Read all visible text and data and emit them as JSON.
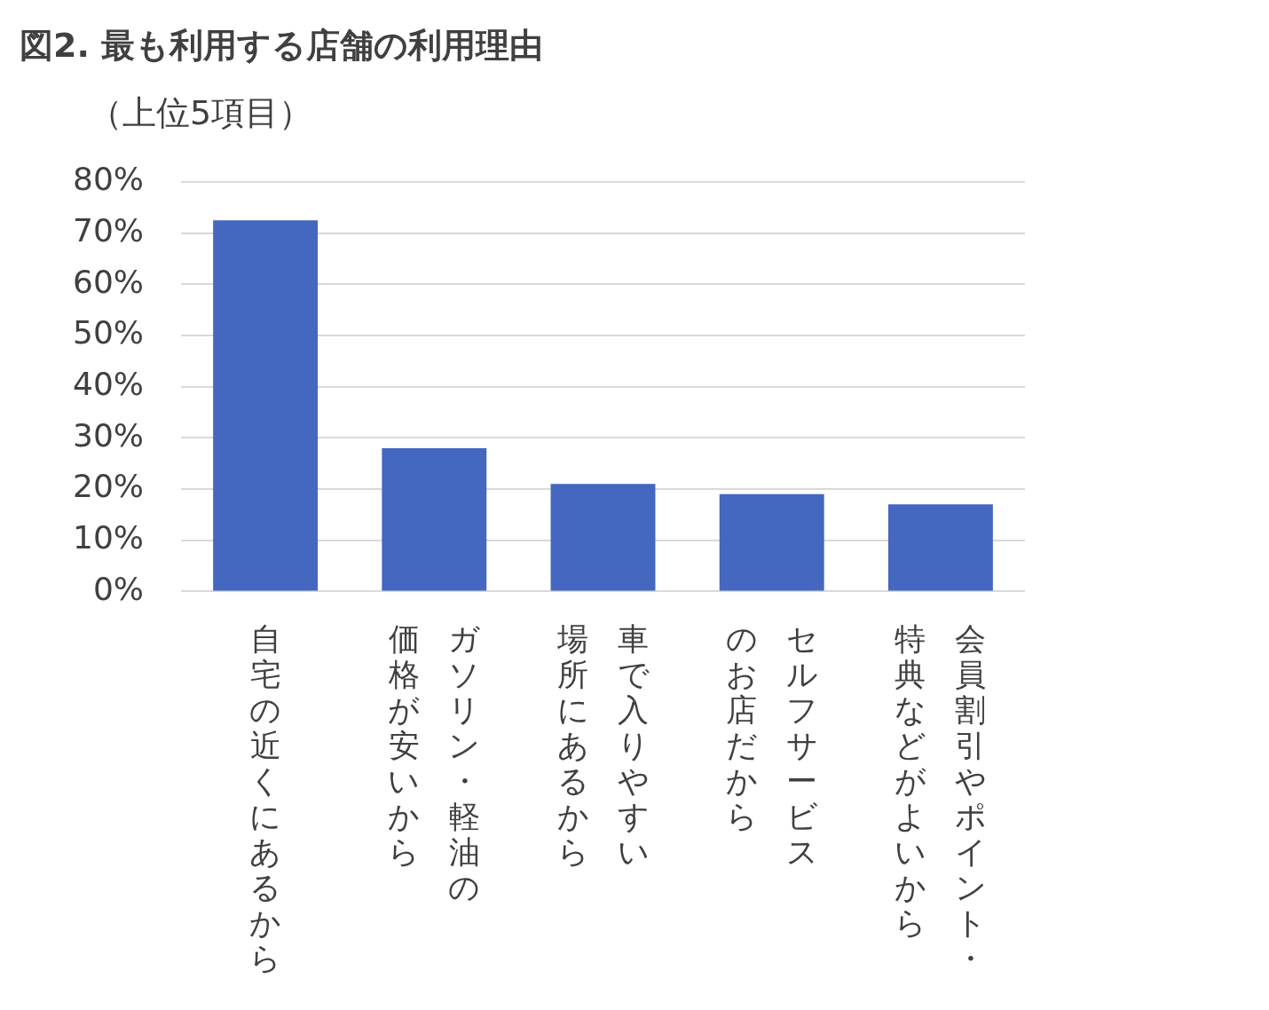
{
  "chart_data": {
    "type": "bar",
    "title": "図2. 最も利用する店舗の利用理由",
    "subtitle": "（上位5項目）",
    "categories": [
      "自宅の近くにあるから",
      "ガソリン・軽油の価格が安いから",
      "車で入りやすい場所にあるから",
      "セルフサービスのお店だから",
      "会員割引やポイント・特典などがよいから"
    ],
    "values": [
      72.5,
      28,
      21,
      19,
      17
    ],
    "color": "#4467bf",
    "ylim": [
      0,
      80
    ],
    "yticks": [
      {
        "value": 0,
        "label": "0%"
      },
      {
        "value": 10,
        "label": "10%"
      },
      {
        "value": 20,
        "label": "20%"
      },
      {
        "value": 30,
        "label": "30%"
      },
      {
        "value": 40,
        "label": "40%"
      },
      {
        "value": 50,
        "label": "50%"
      },
      {
        "value": 60,
        "label": "60%"
      },
      {
        "value": 70,
        "label": "70%"
      },
      {
        "value": 80,
        "label": "80%"
      }
    ],
    "grid": "y",
    "legend": false
  }
}
